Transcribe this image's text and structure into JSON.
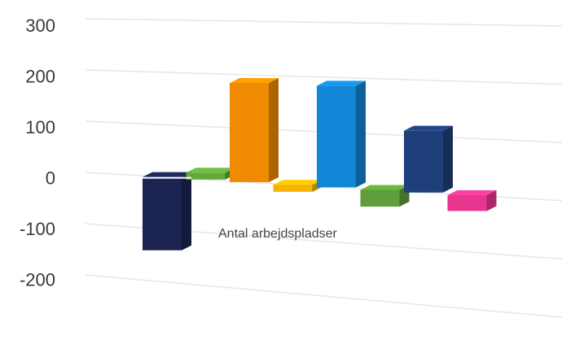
{
  "chart_data": {
    "type": "bar",
    "style": "3d-perspective-columns",
    "categories": [
      "Antal arbejdspladser"
    ],
    "series": [
      {
        "values": [
          -140
        ],
        "color": "#1b2450"
      },
      {
        "values": [
          13
        ],
        "color": "#62a83a"
      },
      {
        "values": [
          185
        ],
        "color": "#f08a00"
      },
      {
        "values": [
          -13
        ],
        "color": "#f4b400"
      },
      {
        "values": [
          185
        ],
        "color": "#1286d6"
      },
      {
        "values": [
          -30
        ],
        "color": "#5f9e3a"
      },
      {
        "values": [
          110
        ],
        "color": "#1f3f7a"
      },
      {
        "values": [
          -28
        ],
        "color": "#e8368f"
      }
    ],
    "ylim": [
      -200,
      300
    ],
    "yticks": [
      "300",
      "200",
      "100",
      "0",
      "-100",
      "-200"
    ],
    "grid": true,
    "legend": false,
    "title": "",
    "xlabel": "",
    "ylabel": ""
  }
}
